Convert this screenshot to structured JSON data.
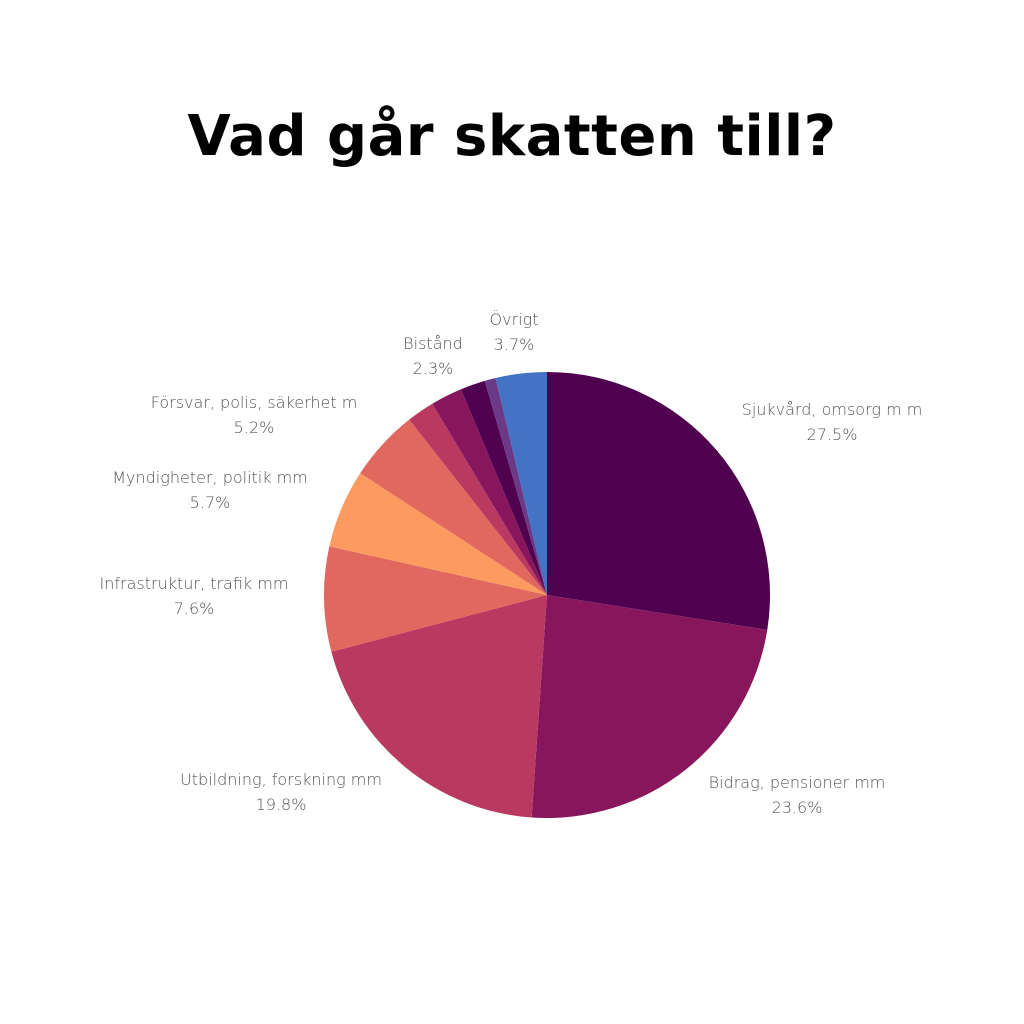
{
  "chart_data": {
    "type": "pie",
    "title": "Vad går skatten till?",
    "slices": [
      {
        "label": "Sjukvård, omsorg m m",
        "value": 27.5,
        "display": "27.5%",
        "color": "#4f0150"
      },
      {
        "label": "Bidrag, pensioner mm",
        "value": 23.6,
        "display": "23.6%",
        "color": "#87165d"
      },
      {
        "label": "Utbildning, forskning mm",
        "value": 19.8,
        "display": "19.8%",
        "color": "#b93961"
      },
      {
        "label": "Infrastruktur, trafik mm",
        "value": 7.6,
        "display": "7.6%",
        "color": "#e0685e"
      },
      {
        "label": "Myndigheter, politik mm",
        "value": 5.7,
        "display": "5.7%",
        "color": "#fd9a60"
      },
      {
        "label": "Försvar, polis, säkerhet m",
        "value": 5.2,
        "display": "5.2%",
        "color": "#e0685e"
      },
      {
        "label": "",
        "value": 2.0,
        "display": "",
        "color": "#b93961"
      },
      {
        "label": "Bistånd",
        "value": 2.3,
        "display": "2.3%",
        "color": "#87165d"
      },
      {
        "label": "",
        "value": 1.8,
        "display": "",
        "color": "#4f0150"
      },
      {
        "label": "",
        "value": 0.8,
        "display": "",
        "color": "#6b3a86"
      },
      {
        "label": "Övrigt",
        "value": 3.7,
        "display": "3.7%",
        "color": "#4472c4"
      }
    ]
  }
}
